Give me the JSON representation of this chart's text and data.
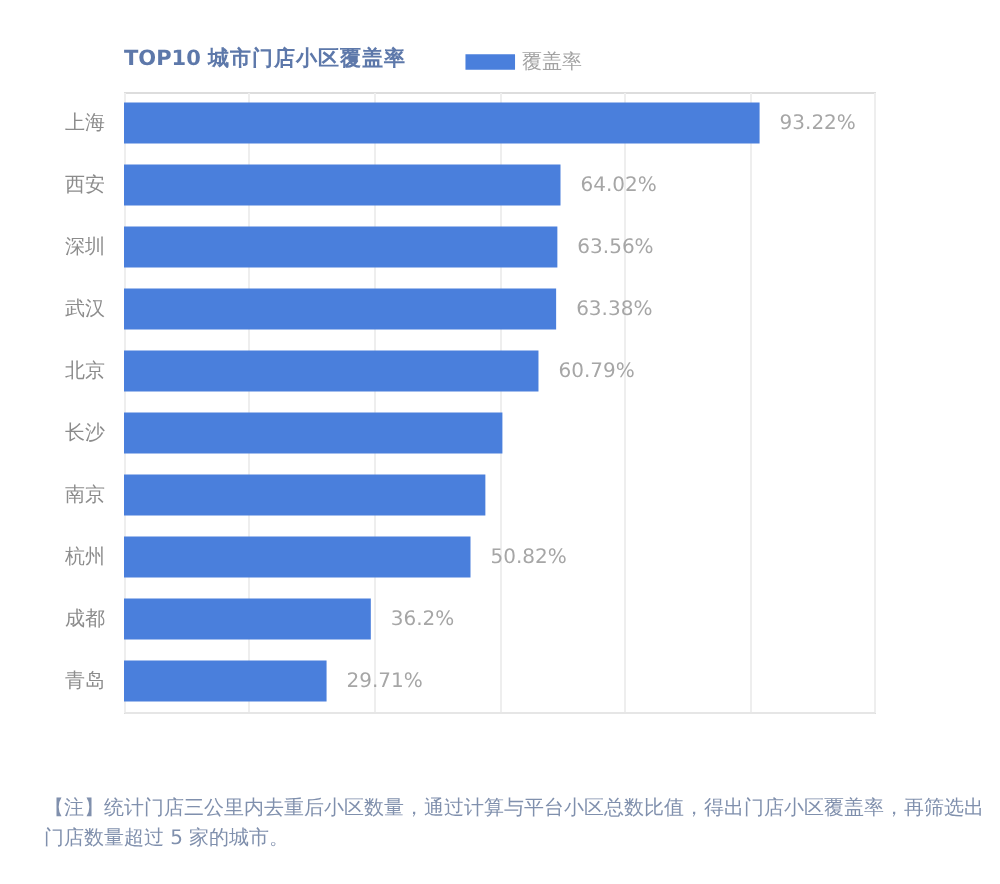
{
  "chart_data": {
    "type": "bar",
    "orientation": "horizontal",
    "title": "TOP10 城市门店小区覆盖率",
    "categories": [
      "上海",
      "西安",
      "深圳",
      "武汉",
      "北京",
      "长沙",
      "南京",
      "杭州",
      "成都",
      "青岛"
    ],
    "series": [
      {
        "name": "覆盖率",
        "color": "#4a7fdc",
        "values": [
          93.22,
          64.02,
          63.56,
          63.38,
          60.79,
          55.5,
          53,
          50.82,
          36.2,
          29.71
        ],
        "value_labels": [
          "93.22%",
          "64.02%",
          "63.56%",
          "63.38%",
          "60.79%",
          null,
          null,
          "50.82%",
          "36.2%",
          "29.71%"
        ]
      }
    ],
    "xlim": [
      0,
      110
    ],
    "xticks": [
      {
        "value": 0,
        "label": null
      },
      {
        "value": 18.3,
        "label": null
      },
      {
        "value": 36.7,
        "label": null
      },
      {
        "value": 55,
        "label": null
      },
      {
        "value": 73.3,
        "label": null
      },
      {
        "value": 91.7,
        "label": null
      },
      {
        "value": 110,
        "label": null
      }
    ],
    "grid": "x",
    "legend": "top",
    "tick_labels": "y",
    "annotations": [
      "【注】统计门店三公里内去重后小区数量，通过计算与平台小区总数比值，得出门店小区覆盖率，再筛选出门店数量超过 5 家的城市。"
    ]
  }
}
